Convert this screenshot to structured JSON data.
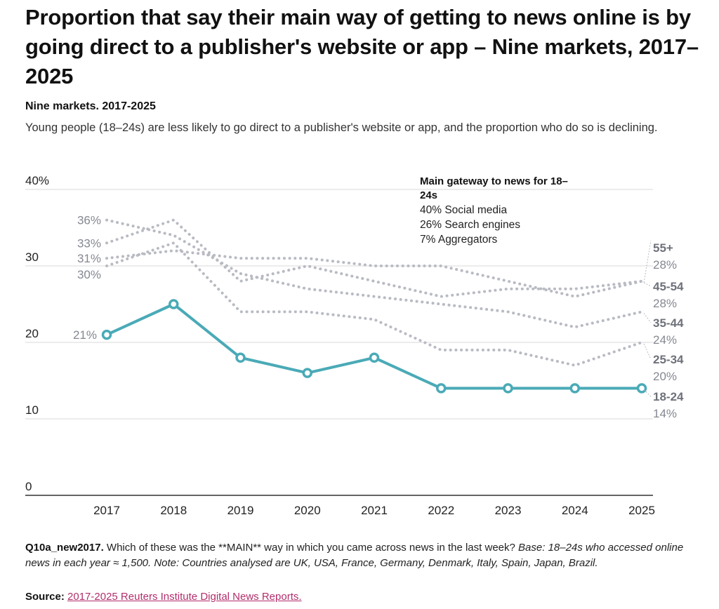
{
  "header": {
    "title": "Proportion that say their main way of getting to news online is by going direct to a publisher's website or app – Nine markets, 2017–2025",
    "subtitle": "Nine markets. 2017-2025",
    "description": "Young people (18–24s) are less likely to go direct to a publisher's website or app, and the proportion who do so is declining."
  },
  "annotation": {
    "title_line1": "Main gateway to news for 18–",
    "title_line2": "24s",
    "lines": [
      "40% Social media",
      "26% Search engines",
      "7% Aggregators"
    ]
  },
  "footer": {
    "question_id": "Q10a_new2017.",
    "question_text": " Which of these was the **MAIN** way in which you came across news in the last week? ",
    "base_note": "Base: 18–24s who accessed online news in each year ≈ 1,500. Note: Countries analysed are UK, USA, France, Germany, Denmark, Italy, Spain, Japan, Brazil.",
    "source_label": "Source:",
    "source_link": "2017-2025 Reuters Institute Digital News Reports."
  },
  "chart_data": {
    "type": "line",
    "title": "Proportion that say their main way of getting to news online is by going direct to a publisher's website or app – Nine markets, 2017–2025",
    "subtitle": "Nine markets. 2017-2025",
    "xlabel": "",
    "ylabel": "",
    "x": [
      "2017",
      "2018",
      "2019",
      "2020",
      "2021",
      "2022",
      "2023",
      "2024",
      "2025"
    ],
    "ylim": [
      0,
      40
    ],
    "yticks": [
      0,
      10,
      20,
      30,
      40
    ],
    "ytick_labels": [
      "0",
      "10",
      "20",
      "30",
      "40%"
    ],
    "grid": true,
    "legend": "direct labels at line ends (right)",
    "colors": {
      "highlight": "#4aaab7",
      "muted": "#b9bbc3",
      "highlight_text": "#3f8e9a",
      "muted_text": "#858891",
      "muted_name": "#6e717a"
    },
    "series": [
      {
        "name": "55+",
        "start_label": "31%",
        "end_label": "28%",
        "highlight": false,
        "values": [
          31,
          32,
          31,
          31,
          30,
          30,
          28,
          26,
          28
        ]
      },
      {
        "name": "45-54",
        "start_label": "33%",
        "end_label": "28%",
        "highlight": false,
        "values": [
          33,
          36,
          28,
          30,
          28,
          26,
          27,
          27,
          28
        ]
      },
      {
        "name": "35-44",
        "start_label": "36%",
        "end_label": "24%",
        "highlight": false,
        "values": [
          36,
          34,
          29,
          27,
          26,
          25,
          24,
          22,
          24
        ]
      },
      {
        "name": "25-34",
        "start_label": "30%",
        "end_label": "20%",
        "highlight": false,
        "values": [
          30,
          33,
          24,
          24,
          23,
          19,
          19,
          17,
          20
        ]
      },
      {
        "name": "18-24",
        "start_label": "21%",
        "end_label": "14%",
        "highlight": true,
        "values": [
          21,
          25,
          18,
          16,
          18,
          14,
          14,
          14,
          14
        ]
      }
    ]
  }
}
